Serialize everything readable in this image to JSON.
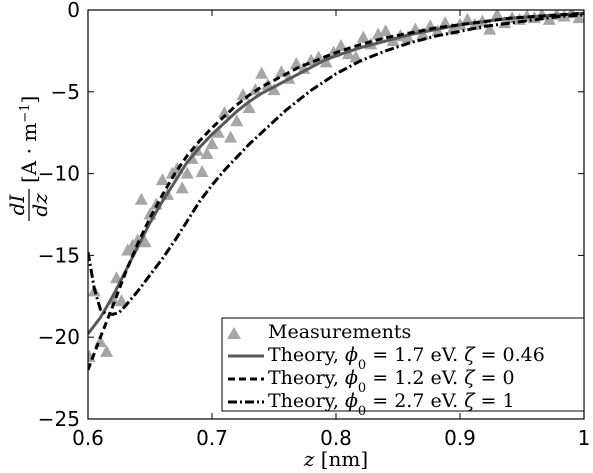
{
  "chart_data": {
    "type": "line",
    "xlabel": "z [nm]",
    "ylabel": "dI/dz [A · m⁻¹]",
    "xlim": [
      0.6,
      1.0
    ],
    "ylim": [
      -25,
      0
    ],
    "x_ticks": [
      0.6,
      0.7,
      0.8,
      0.9,
      1.0
    ],
    "x_tick_labels": [
      "0.6",
      "0.7",
      "0.8",
      "0.9",
      "1"
    ],
    "y_ticks": [
      0,
      -5,
      -10,
      -15,
      -20,
      -25
    ],
    "y_tick_labels": [
      "0",
      "−5",
      "−10",
      "−15",
      "−20",
      "−25"
    ],
    "grid": false,
    "legend_position": "bottom-right",
    "series": [
      {
        "name": "Measurements",
        "style": "triangle-markers",
        "color": "#a6a6a6",
        "x": [
          0.601,
          0.605,
          0.61,
          0.615,
          0.62,
          0.623,
          0.627,
          0.632,
          0.636,
          0.64,
          0.643,
          0.646,
          0.65,
          0.655,
          0.66,
          0.664,
          0.668,
          0.672,
          0.676,
          0.68,
          0.684,
          0.688,
          0.692,
          0.696,
          0.7,
          0.705,
          0.71,
          0.715,
          0.72,
          0.725,
          0.73,
          0.735,
          0.74,
          0.745,
          0.75,
          0.756,
          0.762,
          0.768,
          0.774,
          0.78,
          0.786,
          0.792,
          0.798,
          0.804,
          0.81,
          0.816,
          0.822,
          0.828,
          0.834,
          0.84,
          0.846,
          0.852,
          0.858,
          0.864,
          0.87,
          0.876,
          0.882,
          0.888,
          0.894,
          0.9,
          0.906,
          0.912,
          0.918,
          0.924,
          0.93,
          0.936,
          0.942,
          0.948,
          0.954,
          0.96,
          0.966,
          0.972,
          0.978,
          0.984,
          0.99,
          0.996
        ],
        "y": [
          -21.2,
          -17.2,
          -20.3,
          -20.9,
          -17.7,
          -16.4,
          -17.8,
          -14.7,
          -14.4,
          -14.1,
          -11.6,
          -14.2,
          -12.5,
          -11.9,
          -10.4,
          -11.3,
          -10.0,
          -9.7,
          -10.9,
          -10.0,
          -9.1,
          -8.6,
          -9.9,
          -8.8,
          -8.2,
          -7.5,
          -6.3,
          -7.8,
          -6.8,
          -5.2,
          -6.0,
          -4.9,
          -3.9,
          -4.6,
          -4.9,
          -3.8,
          -4.2,
          -3.3,
          -3.6,
          -3.1,
          -2.9,
          -3.2,
          -2.6,
          -2.2,
          -2.7,
          -2.9,
          -1.7,
          -2.1,
          -1.5,
          -1.3,
          -1.9,
          -1.6,
          -1.7,
          -1.2,
          -1.5,
          -1.0,
          -1.3,
          -0.8,
          -1.2,
          -0.9,
          -0.6,
          -0.9,
          -0.7,
          -1.2,
          -0.3,
          -0.8,
          -0.5,
          -0.6,
          -0.4,
          -0.5,
          -0.3,
          -0.6,
          -0.3,
          -0.4,
          -0.2,
          -0.5
        ]
      },
      {
        "name": "Theory, ϕ0 = 1.7 eV. ζ = 0.46",
        "style": "solid",
        "color": "#595959",
        "x": [
          0.6,
          0.61,
          0.62,
          0.63,
          0.64,
          0.65,
          0.66,
          0.67,
          0.68,
          0.69,
          0.7,
          0.71,
          0.72,
          0.73,
          0.74,
          0.75,
          0.76,
          0.77,
          0.78,
          0.79,
          0.8,
          0.82,
          0.84,
          0.86,
          0.88,
          0.9,
          0.92,
          0.94,
          0.96,
          0.98,
          1.0
        ],
        "y": [
          -19.8,
          -18.8,
          -17.5,
          -16.0,
          -14.5,
          -13.0,
          -11.7,
          -10.5,
          -9.3,
          -8.4,
          -7.6,
          -6.9,
          -6.2,
          -5.6,
          -5.1,
          -4.7,
          -4.3,
          -3.9,
          -3.5,
          -3.1,
          -2.8,
          -2.3,
          -1.9,
          -1.5,
          -1.2,
          -0.9,
          -0.7,
          -0.5,
          -0.4,
          -0.3,
          -0.2
        ]
      },
      {
        "name": "Theory, ϕ0 = 1.2 eV. ζ = 0",
        "style": "dashed",
        "color": "#000000",
        "x": [
          0.6,
          0.61,
          0.62,
          0.63,
          0.64,
          0.65,
          0.66,
          0.67,
          0.68,
          0.69,
          0.7,
          0.71,
          0.72,
          0.73,
          0.74,
          0.75,
          0.76,
          0.77,
          0.78,
          0.79,
          0.8,
          0.82,
          0.84,
          0.86,
          0.88,
          0.9,
          0.92,
          0.94,
          0.96,
          0.98,
          1.0
        ],
        "y": [
          -22.0,
          -20.0,
          -18.1,
          -16.1,
          -14.3,
          -12.7,
          -11.3,
          -10.0,
          -8.9,
          -8.0,
          -7.2,
          -6.5,
          -5.8,
          -5.2,
          -4.7,
          -4.3,
          -3.9,
          -3.5,
          -3.2,
          -2.9,
          -2.6,
          -2.1,
          -1.7,
          -1.4,
          -1.1,
          -0.9,
          -0.7,
          -0.5,
          -0.4,
          -0.3,
          -0.2
        ]
      },
      {
        "name": "Theory, ϕ0 = 2.7 eV. ζ = 1",
        "style": "dash-dot",
        "color": "#000000",
        "x": [
          0.6,
          0.605,
          0.61,
          0.615,
          0.62,
          0.625,
          0.63,
          0.64,
          0.65,
          0.66,
          0.67,
          0.68,
          0.69,
          0.7,
          0.71,
          0.72,
          0.73,
          0.74,
          0.75,
          0.76,
          0.77,
          0.78,
          0.79,
          0.8,
          0.82,
          0.84,
          0.86,
          0.88,
          0.9,
          0.92,
          0.94,
          0.96,
          0.98,
          1.0
        ],
        "y": [
          -14.8,
          -17.0,
          -18.3,
          -18.6,
          -18.6,
          -18.5,
          -18.1,
          -17.2,
          -16.2,
          -15.2,
          -14.1,
          -12.9,
          -11.7,
          -10.7,
          -9.8,
          -9.0,
          -8.2,
          -7.5,
          -6.8,
          -6.1,
          -5.5,
          -4.9,
          -4.4,
          -3.9,
          -3.1,
          -2.5,
          -2.0,
          -1.6,
          -1.3,
          -1.0,
          -0.8,
          -0.6,
          -0.4,
          -0.3
        ]
      }
    ]
  }
}
